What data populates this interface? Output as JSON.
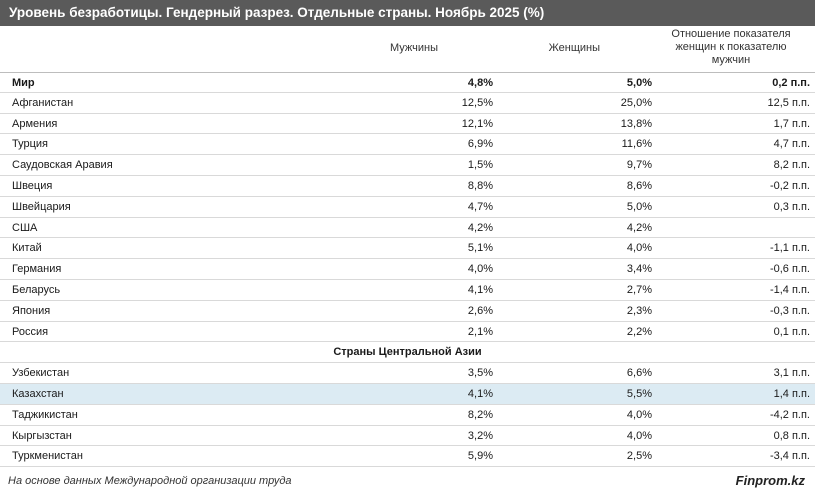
{
  "title": "Уровень безработицы. Гендерный разрез. Отдельные страны. Ноябрь 2025 (%)",
  "columns": {
    "men": "Мужчины",
    "women": "Женщины",
    "ratio_line1": "Отношение показателя",
    "ratio_line2": "женщин к показателю",
    "ratio_line3": "мужчин"
  },
  "rows": [
    {
      "name": "Мир",
      "men": "4,8%",
      "women": "5,0%",
      "ratio": "0,2 п.п."
    },
    {
      "name": "Афганистан",
      "men": "12,5%",
      "women": "25,0%",
      "ratio": "12,5 п.п."
    },
    {
      "name": "Армения",
      "men": "12,1%",
      "women": "13,8%",
      "ratio": "1,7 п.п."
    },
    {
      "name": "Турция",
      "men": "6,9%",
      "women": "11,6%",
      "ratio": "4,7 п.п."
    },
    {
      "name": "Саудовская Аравия",
      "men": "1,5%",
      "women": "9,7%",
      "ratio": "8,2 п.п."
    },
    {
      "name": "Швеция",
      "men": "8,8%",
      "women": "8,6%",
      "ratio": "-0,2 п.п."
    },
    {
      "name": "Швейцария",
      "men": "4,7%",
      "women": "5,0%",
      "ratio": "0,3 п.п."
    },
    {
      "name": "США",
      "men": "4,2%",
      "women": "4,2%",
      "ratio": ""
    },
    {
      "name": "Китай",
      "men": "5,1%",
      "women": "4,0%",
      "ratio": "-1,1 п.п."
    },
    {
      "name": "Германия",
      "men": "4,0%",
      "women": "3,4%",
      "ratio": "-0,6 п.п."
    },
    {
      "name": "Беларусь",
      "men": "4,1%",
      "women": "2,7%",
      "ratio": "-1,4 п.п."
    },
    {
      "name": "Япония",
      "men": "2,6%",
      "women": "2,3%",
      "ratio": "-0,3 п.п."
    },
    {
      "name": "Россия",
      "men": "2,1%",
      "women": "2,2%",
      "ratio": "0,1 п.п."
    }
  ],
  "section_title": "Страны Центральной Азии",
  "central_asia_rows": [
    {
      "name": "Узбекистан",
      "men": "3,5%",
      "women": "6,6%",
      "ratio": "3,1 п.п."
    },
    {
      "name": "Казахстан",
      "men": "4,1%",
      "women": "5,5%",
      "ratio": "1,4 п.п."
    },
    {
      "name": "Таджикистан",
      "men": "8,2%",
      "women": "4,0%",
      "ratio": "-4,2 п.п."
    },
    {
      "name": "Кыргызстан",
      "men": "3,2%",
      "women": "4,0%",
      "ratio": "0,8 п.п."
    },
    {
      "name": "Туркменистан",
      "men": "5,9%",
      "women": "2,5%",
      "ratio": "-3,4 п.п."
    }
  ],
  "footer": {
    "source": "На основе данных Международной организации труда",
    "brand": "Finprom.kz"
  }
}
